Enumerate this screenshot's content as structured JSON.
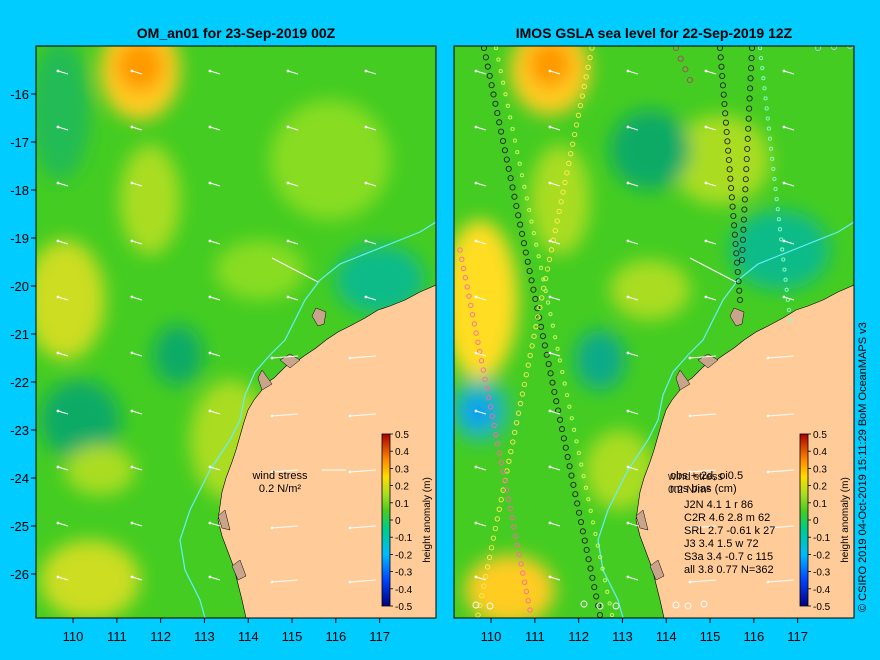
{
  "left_panel": {
    "title": "OM_an01 for 23-Sep-2019 00Z",
    "wind_label_1": "wind stress",
    "wind_label_2": "0.2 N/m²"
  },
  "right_panel": {
    "title": "IMOS GSLA sea level  for 22-Sep-2019 12Z",
    "obs_header_1": "obs +-2d, oi0.5",
    "obs_header_2": "rms bias (cm)",
    "wind_overlap_1": "wind stress",
    "wind_overlap_2": "0.2 N/m²",
    "stats_rows": [
      "J2N   4.1 1 r 86",
      "C2R   4.6 2.8 m 62",
      "SRL   2.7 -0.61 k 27",
      "J3    3.4 1.5 w 72",
      "S3a   3.4 -0.7 c 115",
      "all   3.8 0.77 N=362"
    ]
  },
  "axes": {
    "x_ticks": [
      "110",
      "111",
      "112",
      "113",
      "114",
      "115",
      "116",
      "117"
    ],
    "y_ticks": [
      "-16",
      "-17",
      "-18",
      "-19",
      "-20",
      "-21",
      "-22",
      "-23",
      "-24",
      "-25",
      "-26"
    ]
  },
  "colorbar": {
    "label": "height anomaly (m)",
    "ticks": [
      "0.5",
      "0.4",
      "0.3",
      "0.2",
      "0.1",
      "0",
      "-0.1",
      "-0.2",
      "-0.3",
      "-0.4",
      "-0.5"
    ]
  },
  "credit": "© CSIRO 2019   04-Oct-2019 15:11:29 BoM OceanMAPS v3",
  "colors": {
    "background": "#00ccff",
    "land": "#ffcc99",
    "sea_base": "#44cc22",
    "cool": "#11bb55",
    "warm": "#ccdd22",
    "hot": "#ff9900"
  }
}
